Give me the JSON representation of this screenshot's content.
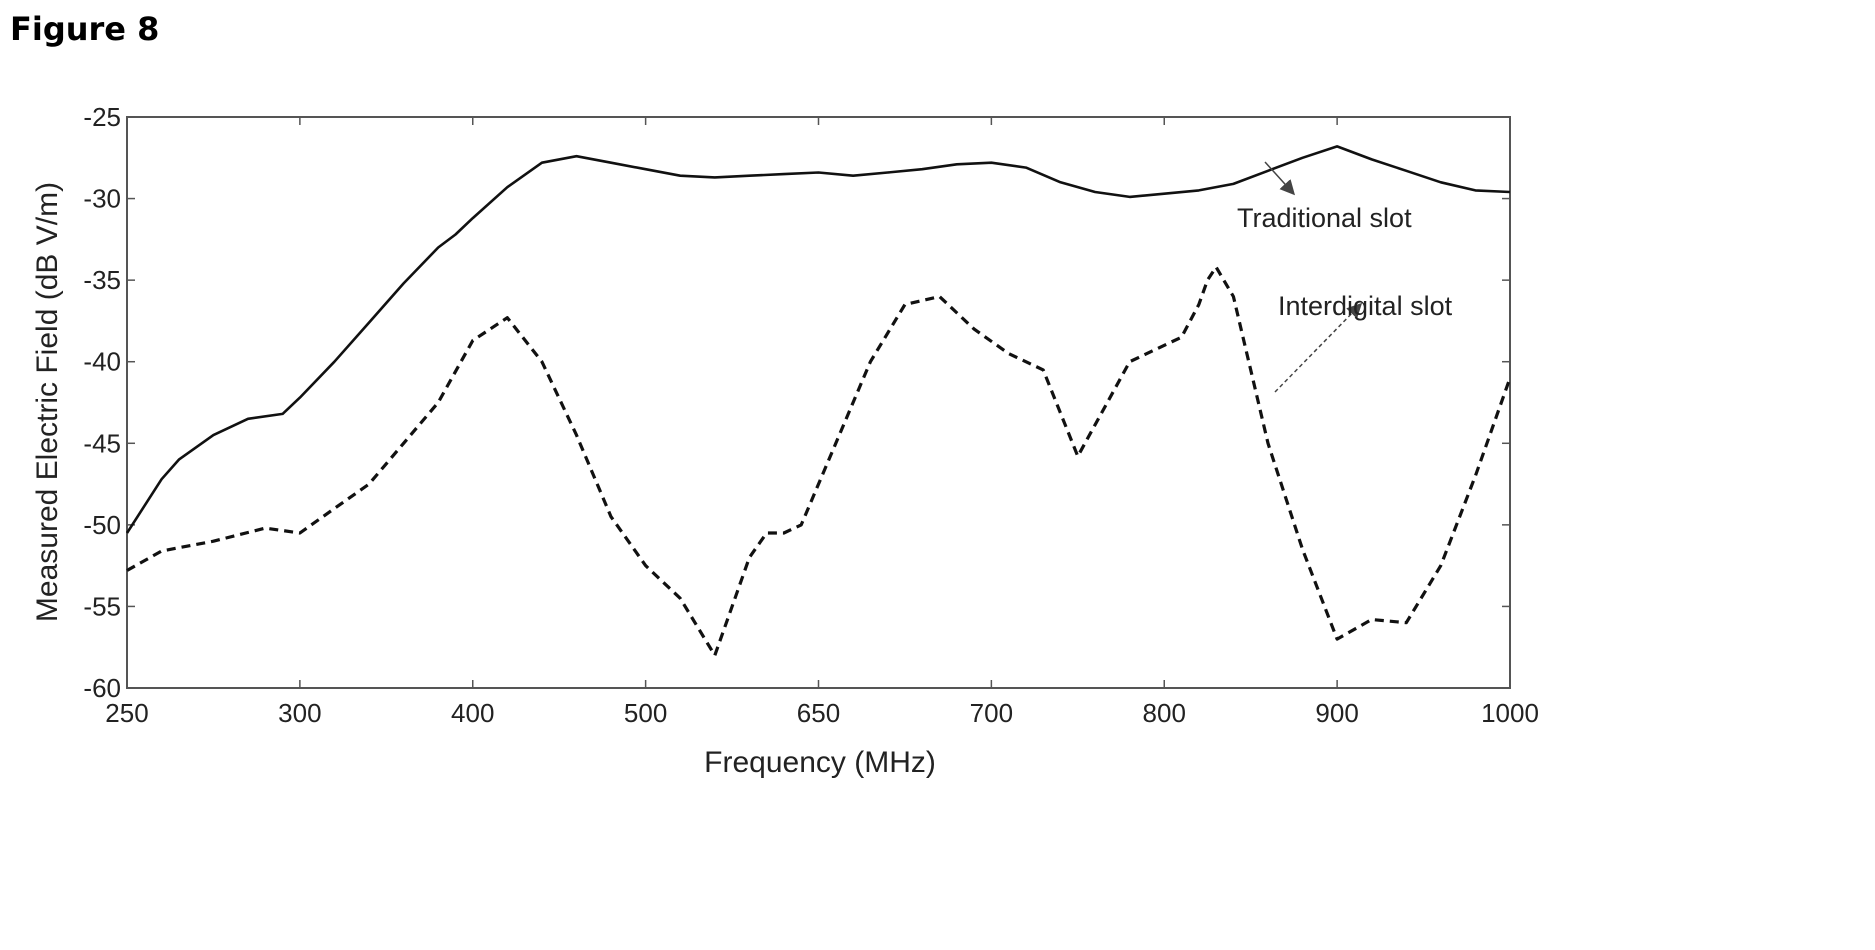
{
  "figure": {
    "title": "Figure 8"
  },
  "colors": {
    "axis": "#555555",
    "traditional": "#111111",
    "interdigital": "#111111",
    "arrow": "#444444"
  },
  "chart_data": {
    "type": "line",
    "title": "",
    "xlabel": "Frequency (MHz)",
    "ylabel": "Measured Electric Field (dB V/m)",
    "x_tick_labels": [
      "250",
      "300",
      "400",
      "500",
      "650",
      "700",
      "800",
      "900",
      "1000"
    ],
    "y_ticks": [
      -25,
      -30,
      -35,
      -40,
      -45,
      -50,
      -55,
      -60
    ],
    "ylim": [
      -60,
      -25
    ],
    "grid": false,
    "series": [
      {
        "name": "Traditional slot",
        "style": "solid",
        "x": [
          0,
          0.2,
          0.3,
          0.5,
          0.7,
          0.9,
          1.0,
          1.2,
          1.4,
          1.6,
          1.8,
          1.9,
          2.0,
          2.2,
          2.4,
          2.6,
          2.8,
          3.0,
          3.2,
          3.4,
          3.6,
          3.8,
          4.0,
          4.2,
          4.4,
          4.6,
          4.8,
          5.0,
          5.2,
          5.4,
          5.6,
          5.8,
          6.0,
          6.2,
          6.4,
          6.6,
          6.8,
          7.0,
          7.2,
          7.4,
          7.6,
          7.8,
          8.0
        ],
        "y": [
          -50.5,
          -47.2,
          -46.0,
          -44.5,
          -43.5,
          -43.2,
          -42.2,
          -40.0,
          -37.6,
          -35.2,
          -33.0,
          -32.2,
          -31.2,
          -29.3,
          -27.8,
          -27.4,
          -27.8,
          -28.2,
          -28.6,
          -28.7,
          -28.6,
          -28.5,
          -28.4,
          -28.6,
          -28.4,
          -28.2,
          -27.9,
          -27.8,
          -28.1,
          -29.0,
          -29.6,
          -29.9,
          -29.7,
          -29.5,
          -29.1,
          -28.3,
          -27.5,
          -26.8,
          -27.6,
          -28.3,
          -29.0,
          -29.5,
          -29.6
        ]
      },
      {
        "name": "Interdigital slot",
        "style": "dashed",
        "x": [
          0,
          0.2,
          0.5,
          0.8,
          1.0,
          1.2,
          1.4,
          1.6,
          1.8,
          2.0,
          2.2,
          2.4,
          2.6,
          2.8,
          3.0,
          3.2,
          3.4,
          3.6,
          3.7,
          3.8,
          3.9,
          4.0,
          4.1,
          4.3,
          4.5,
          4.7,
          4.9,
          5.1,
          5.3,
          5.5,
          5.8,
          6.1,
          6.2,
          6.25,
          6.3,
          6.4,
          6.6,
          6.8,
          7.0,
          7.2,
          7.4,
          7.6,
          7.8,
          8.0
        ],
        "y": [
          -52.8,
          -51.6,
          -51.0,
          -50.2,
          -50.5,
          -49.0,
          -47.5,
          -45.0,
          -42.5,
          -38.7,
          -37.3,
          -40.0,
          -44.5,
          -49.5,
          -52.5,
          -54.5,
          -58.0,
          -52.0,
          -50.5,
          -50.5,
          -50.0,
          -47.5,
          -45.0,
          -40.0,
          -36.5,
          -36.0,
          -38.0,
          -39.5,
          -40.5,
          -45.8,
          -40.0,
          -38.5,
          -36.5,
          -35.0,
          -34.2,
          -36.0,
          -45.0,
          -51.5,
          -57.0,
          -55.8,
          -56.0,
          -52.5,
          -47.0,
          -41.0
        ]
      }
    ],
    "annotations": [
      {
        "text": "Traditional slot",
        "points_to": "Traditional slot"
      },
      {
        "text": "Interdigital slot",
        "points_to": "Interdigital slot"
      }
    ]
  }
}
